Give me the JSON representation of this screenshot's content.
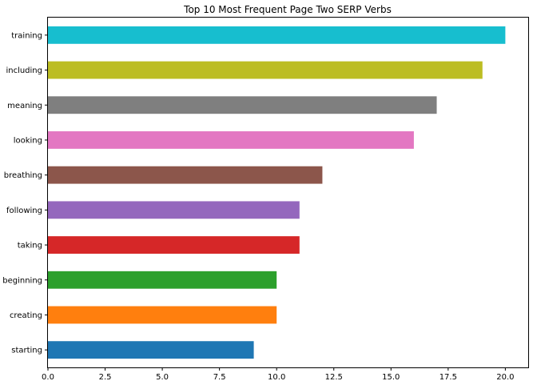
{
  "chart_data": {
    "type": "bar",
    "orientation": "horizontal",
    "title": "Top 10 Most Frequent Page Two SERP Verbs",
    "xlabel": "",
    "ylabel": "",
    "xlim": [
      0,
      21
    ],
    "x_ticks": [
      "0.0",
      "2.5",
      "5.0",
      "7.5",
      "10.0",
      "12.5",
      "15.0",
      "17.5",
      "20.0"
    ],
    "grid": false,
    "legend": false,
    "categories": [
      "starting",
      "creating",
      "beginning",
      "taking",
      "following",
      "breathing",
      "looking",
      "meaning",
      "including",
      "training"
    ],
    "values": [
      9,
      10,
      10,
      11,
      11,
      12,
      16,
      17,
      19,
      20
    ],
    "colors": [
      "#1f77b4",
      "#ff7f0e",
      "#2ca02c",
      "#d62728",
      "#9467bd",
      "#8c564b",
      "#e377c2",
      "#7f7f7f",
      "#bcbd22",
      "#17becf"
    ]
  }
}
